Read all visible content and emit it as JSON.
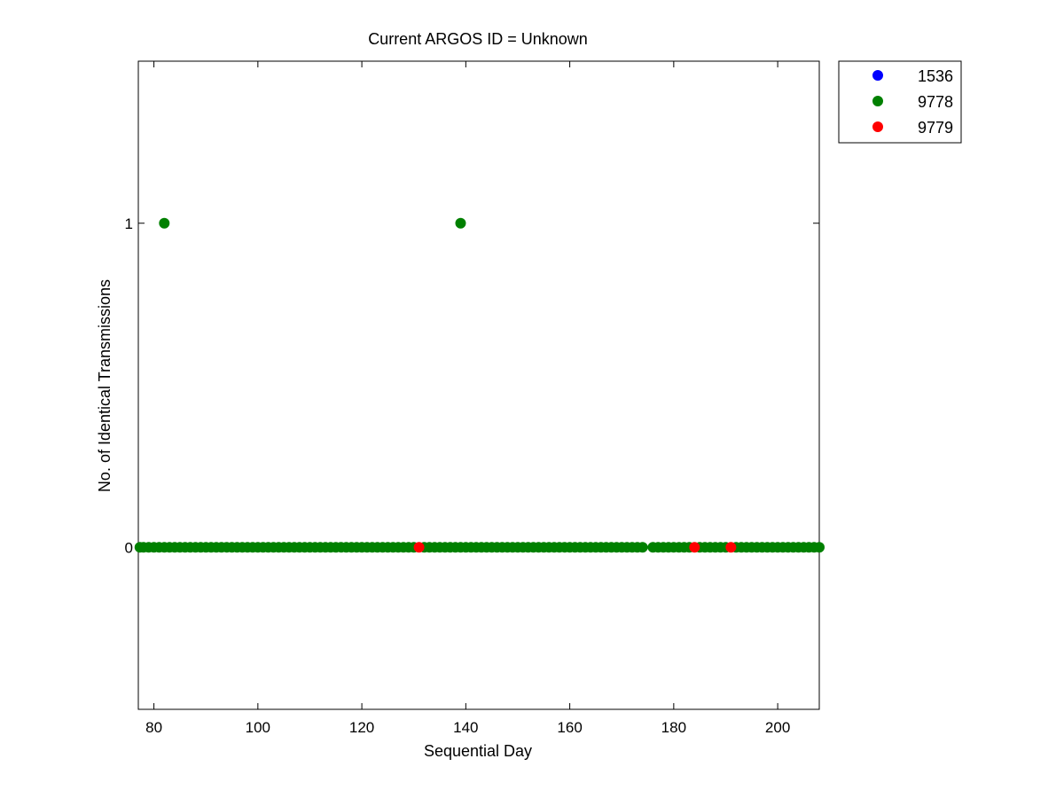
{
  "chart_data": {
    "type": "scatter",
    "title": "Current ARGOS ID = Unknown",
    "xlabel": "Sequential Day",
    "ylabel": "No. of Identical Transmissions",
    "xlim": [
      77,
      208
    ],
    "ylim": [
      -0.5,
      1.5
    ],
    "xticks": [
      80,
      100,
      120,
      140,
      160,
      180,
      200
    ],
    "xtick_labels": [
      "80",
      "100",
      "120",
      "140",
      "160",
      "180",
      "200"
    ],
    "yticks": [
      0,
      1
    ],
    "ytick_labels": [
      "0",
      "1"
    ],
    "grid": false,
    "legend_position": "outside-top-right",
    "series": [
      {
        "name": "1536",
        "color": "#0000ff",
        "points": []
      },
      {
        "name": "9778",
        "color": "#008000",
        "points": [
          [
            77.3,
            0
          ],
          [
            78,
            0
          ],
          [
            79,
            0
          ],
          [
            80,
            0
          ],
          [
            81,
            0
          ],
          [
            82,
            1
          ],
          [
            82,
            0
          ],
          [
            83,
            0
          ],
          [
            84,
            0
          ],
          [
            85,
            0
          ],
          [
            86,
            0
          ],
          [
            87,
            0
          ],
          [
            88,
            0
          ],
          [
            89,
            0
          ],
          [
            90,
            0
          ],
          [
            91,
            0
          ],
          [
            92,
            0
          ],
          [
            93,
            0
          ],
          [
            94,
            0
          ],
          [
            95,
            0
          ],
          [
            96,
            0
          ],
          [
            97,
            0
          ],
          [
            98,
            0
          ],
          [
            99,
            0
          ],
          [
            100,
            0
          ],
          [
            101,
            0
          ],
          [
            102,
            0
          ],
          [
            103,
            0
          ],
          [
            104,
            0
          ],
          [
            105,
            0
          ],
          [
            106,
            0
          ],
          [
            107,
            0
          ],
          [
            108,
            0
          ],
          [
            109,
            0
          ],
          [
            110,
            0
          ],
          [
            111,
            0
          ],
          [
            112,
            0
          ],
          [
            113,
            0
          ],
          [
            114,
            0
          ],
          [
            115,
            0
          ],
          [
            116,
            0
          ],
          [
            117,
            0
          ],
          [
            118,
            0
          ],
          [
            119,
            0
          ],
          [
            120,
            0
          ],
          [
            121,
            0
          ],
          [
            122,
            0
          ],
          [
            123,
            0
          ],
          [
            124,
            0
          ],
          [
            125,
            0
          ],
          [
            126,
            0
          ],
          [
            127,
            0
          ],
          [
            128,
            0
          ],
          [
            129,
            0
          ],
          [
            130,
            0
          ],
          [
            132,
            0
          ],
          [
            133,
            0
          ],
          [
            134,
            0
          ],
          [
            135,
            0
          ],
          [
            136,
            0
          ],
          [
            137,
            0
          ],
          [
            138,
            0
          ],
          [
            139,
            1
          ],
          [
            139,
            0
          ],
          [
            140,
            0
          ],
          [
            141,
            0
          ],
          [
            142,
            0
          ],
          [
            143,
            0
          ],
          [
            144,
            0
          ],
          [
            145,
            0
          ],
          [
            146,
            0
          ],
          [
            147,
            0
          ],
          [
            148,
            0
          ],
          [
            149,
            0
          ],
          [
            150,
            0
          ],
          [
            151,
            0
          ],
          [
            152,
            0
          ],
          [
            153,
            0
          ],
          [
            154,
            0
          ],
          [
            155,
            0
          ],
          [
            156,
            0
          ],
          [
            157,
            0
          ],
          [
            158,
            0
          ],
          [
            159,
            0
          ],
          [
            160,
            0
          ],
          [
            161,
            0
          ],
          [
            162,
            0
          ],
          [
            163,
            0
          ],
          [
            164,
            0
          ],
          [
            165,
            0
          ],
          [
            166,
            0
          ],
          [
            167,
            0
          ],
          [
            168,
            0
          ],
          [
            169,
            0
          ],
          [
            170,
            0
          ],
          [
            171,
            0
          ],
          [
            172,
            0
          ],
          [
            173,
            0
          ],
          [
            174,
            0
          ],
          [
            176,
            0
          ],
          [
            177,
            0
          ],
          [
            178,
            0
          ],
          [
            179,
            0
          ],
          [
            180,
            0
          ],
          [
            181,
            0
          ],
          [
            182,
            0
          ],
          [
            183,
            0
          ],
          [
            185,
            0
          ],
          [
            186,
            0
          ],
          [
            187,
            0
          ],
          [
            188,
            0
          ],
          [
            189,
            0
          ],
          [
            190,
            0
          ],
          [
            192,
            0
          ],
          [
            193,
            0
          ],
          [
            194,
            0
          ],
          [
            195,
            0
          ],
          [
            196,
            0
          ],
          [
            197,
            0
          ],
          [
            198,
            0
          ],
          [
            199,
            0
          ],
          [
            200,
            0
          ],
          [
            201,
            0
          ],
          [
            202,
            0
          ],
          [
            203,
            0
          ],
          [
            204,
            0
          ],
          [
            205,
            0
          ],
          [
            206,
            0
          ],
          [
            207,
            0
          ],
          [
            208,
            0
          ]
        ]
      },
      {
        "name": "9779",
        "color": "#ff0000",
        "points": [
          [
            131,
            0
          ],
          [
            184,
            0
          ],
          [
            191,
            0
          ]
        ]
      }
    ]
  }
}
